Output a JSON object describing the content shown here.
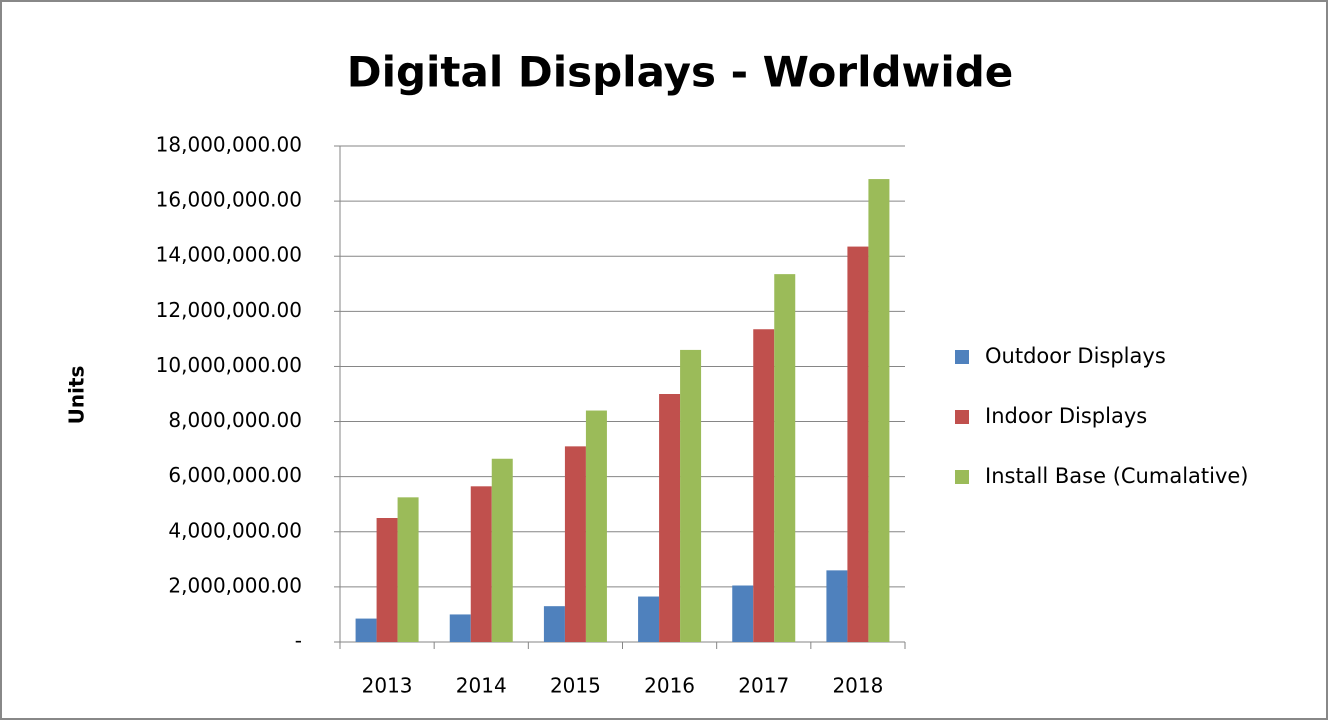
{
  "chart_data": {
    "type": "bar",
    "title": "Digital Displays - Worldwide",
    "y_label": "Units",
    "categories": [
      "2013",
      "2014",
      "2015",
      "2016",
      "2017",
      "2018"
    ],
    "series": [
      {
        "name": "Outdoor Displays",
        "color": "#4f81bd",
        "values": [
          850000,
          1000000,
          1300000,
          1650000,
          2050000,
          2600000
        ]
      },
      {
        "name": "Indoor Displays",
        "color": "#c0504d",
        "values": [
          4500000,
          5650000,
          7100000,
          9000000,
          11350000,
          14350000
        ]
      },
      {
        "name": "Install Base (Cumalative)",
        "color": "#9bbb59",
        "values": [
          5250000,
          6650000,
          8400000,
          10600000,
          13350000,
          16800000
        ]
      }
    ],
    "ylim": [
      0,
      18000000
    ],
    "yticks": [
      {
        "value": 0,
        "label": "-"
      },
      {
        "value": 2000000,
        "label": "2,000,000.00"
      },
      {
        "value": 4000000,
        "label": "4,000,000.00"
      },
      {
        "value": 6000000,
        "label": "6,000,000.00"
      },
      {
        "value": 8000000,
        "label": "8,000,000.00"
      },
      {
        "value": 10000000,
        "label": "10,000,000.00"
      },
      {
        "value": 12000000,
        "label": "12,000,000.00"
      },
      {
        "value": 14000000,
        "label": "14,000,000.00"
      },
      {
        "value": 16000000,
        "label": "16,000,000.00"
      },
      {
        "value": 18000000,
        "label": "18,000,000.00"
      }
    ],
    "grid": true,
    "legend": "right"
  }
}
